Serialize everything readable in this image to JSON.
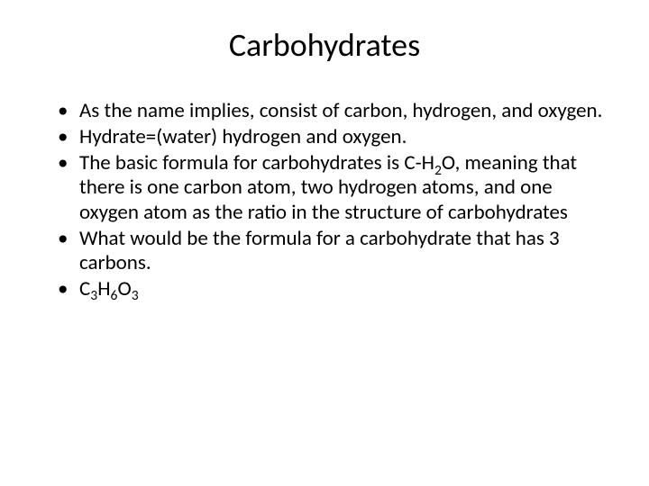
{
  "slide": {
    "title": "Carbohydrates",
    "bullets": [
      {
        "plain": "As the name implies, consist of carbon, hydrogen, and oxygen."
      },
      {
        "plain": "Hydrate=(water) hydrogen and oxygen."
      },
      {
        "rich": [
          {
            "t": "The basic formula for carbohydrates is  C-H"
          },
          {
            "t": "2",
            "sub": true
          },
          {
            "t": "O, meaning that there is one carbon atom, two hydrogen atoms, and one oxygen atom as the ratio in the structure of carbohydrates"
          }
        ]
      },
      {
        "plain": "What would be the formula for a carbohydrate that has 3 carbons."
      },
      {
        "rich": [
          {
            "t": "C"
          },
          {
            "t": "3",
            "sub": true
          },
          {
            "t": "H"
          },
          {
            "t": "6",
            "sub": true
          },
          {
            "t": "O"
          },
          {
            "t": "3",
            "sub": true
          }
        ]
      }
    ],
    "colors": {
      "background": "#ffffff",
      "text": "#000000"
    },
    "typography": {
      "title_fontsize": 36,
      "body_fontsize": 23,
      "font_family": "Calibri"
    }
  }
}
